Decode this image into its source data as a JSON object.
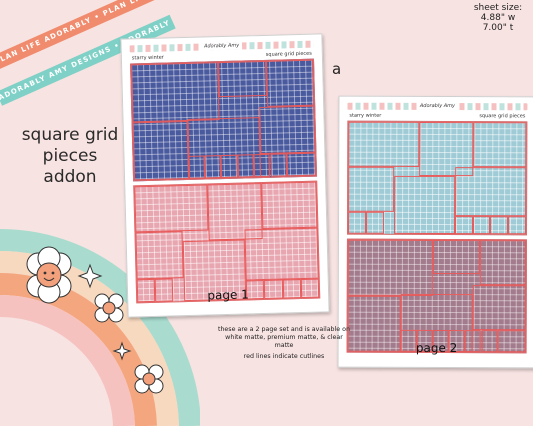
{
  "ribbons": [
    "Plan Life Adorably • Plan Life Adorably • Plan Life Adorably",
    "Adorably Amy Designs • Adorably Amy Designs • Adorably"
  ],
  "title": [
    "square grid",
    "pieces",
    "addon"
  ],
  "sheet_size": [
    "sheet size:",
    "4.88\" w",
    "7.00\" t"
  ],
  "variant_letter": "a",
  "pages": [
    {
      "label": "page 1",
      "header_left": "starry winter",
      "header_right": "square grid pieces",
      "logo": "Adorably Amy"
    },
    {
      "label": "page 2",
      "header_left": "starry winter",
      "header_right": "square grid pieces",
      "logo": "Adorably Amy"
    }
  ],
  "info": {
    "set_text": "these are a 2 page set and is available on white matte, premium matte, & clear matte",
    "cutlines_text": "red lines indicate cutlines"
  },
  "colors": {
    "blue": "#4a5a9e",
    "pink": "#e7a6b0",
    "light_blue": "#9fcbd6",
    "mauve": "#a27b8c",
    "cutline": "#e85a5a",
    "coral": "#f08b6e",
    "mint": "#7fd0c6"
  }
}
